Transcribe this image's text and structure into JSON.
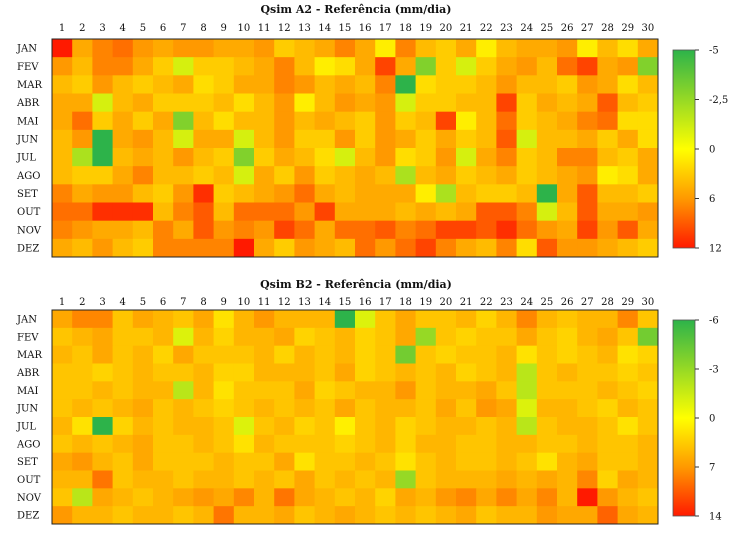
{
  "chart_data": [
    {
      "type": "heatmap",
      "title": "Qsim A2 - Referência (mm/dia)",
      "x_categories": [
        "1",
        "2",
        "3",
        "4",
        "5",
        "6",
        "7",
        "8",
        "9",
        "10",
        "11",
        "12",
        "13",
        "14",
        "15",
        "16",
        "17",
        "18",
        "19",
        "20",
        "21",
        "22",
        "23",
        "24",
        "25",
        "26",
        "27",
        "28",
        "29",
        "30"
      ],
      "y_categories": [
        "JAN",
        "FEV",
        "MAR",
        "ABR",
        "MAI",
        "JUN",
        "JUL",
        "AGO",
        "SET",
        "OUT",
        "NOV",
        "DEZ"
      ],
      "colorbar": {
        "ticks": [
          "-5",
          "-2,5",
          "0",
          "6",
          "12"
        ],
        "tick_values": [
          -5,
          -2.5,
          0,
          6,
          12
        ],
        "colors": [
          "#2db34a",
          "#ffff00",
          "#ff1a00"
        ]
      },
      "values": [
        [
          12,
          5,
          7,
          8,
          6,
          5,
          6,
          6,
          5,
          5,
          6,
          3,
          4,
          5,
          7,
          5,
          1,
          7,
          4,
          3,
          5,
          1,
          4,
          5,
          5,
          6,
          1,
          4,
          2,
          5
        ],
        [
          6,
          4,
          7,
          7,
          5,
          3,
          -1,
          3,
          3,
          4,
          5,
          7,
          4,
          1,
          2,
          5,
          10,
          5,
          -3,
          3,
          -1,
          3,
          5,
          6,
          4,
          8,
          10,
          5,
          6,
          -3
        ],
        [
          4,
          3,
          6,
          4,
          3,
          4,
          5,
          2,
          3,
          5,
          5,
          7,
          6,
          4,
          5,
          4,
          7,
          -5,
          2,
          3,
          3,
          4,
          6,
          4,
          4,
          3,
          6,
          5,
          2,
          4
        ],
        [
          5,
          5,
          -1,
          4,
          5,
          3,
          3,
          3,
          4,
          2,
          4,
          6,
          1,
          4,
          6,
          5,
          6,
          -1,
          3,
          3,
          4,
          4,
          10,
          3,
          5,
          4,
          5,
          9,
          4,
          3
        ],
        [
          5,
          8,
          3,
          5,
          3,
          5,
          -3,
          4,
          2,
          4,
          4,
          6,
          4,
          5,
          4,
          3,
          6,
          3,
          4,
          10,
          1,
          4,
          8,
          3,
          4,
          5,
          7,
          8,
          2,
          2
        ],
        [
          4,
          6,
          -5,
          5,
          6,
          4,
          -1,
          5,
          5,
          -1,
          4,
          6,
          3,
          3,
          6,
          3,
          6,
          5,
          3,
          5,
          3,
          4,
          9,
          -1,
          4,
          4,
          5,
          3,
          5,
          2
        ],
        [
          4,
          -2,
          -5,
          4,
          5,
          4,
          6,
          4,
          3,
          -3,
          3,
          5,
          4,
          2,
          -1,
          4,
          6,
          2,
          3,
          6,
          -1,
          5,
          7,
          3,
          4,
          7,
          7,
          4,
          3,
          5
        ],
        [
          4,
          3,
          3,
          5,
          7,
          4,
          4,
          3,
          4,
          -1,
          5,
          3,
          6,
          3,
          4,
          5,
          4,
          -2,
          4,
          5,
          3,
          4,
          5,
          3,
          4,
          5,
          6,
          1,
          2,
          5
        ],
        [
          7,
          5,
          6,
          6,
          4,
          3,
          6,
          11,
          3,
          4,
          5,
          6,
          8,
          5,
          4,
          5,
          5,
          5,
          1,
          -2,
          4,
          3,
          3,
          4,
          -5,
          5,
          9,
          4,
          4,
          3
        ],
        [
          8,
          8,
          11,
          11,
          11,
          4,
          7,
          9,
          4,
          8,
          8,
          8,
          6,
          10,
          5,
          5,
          5,
          4,
          5,
          4,
          5,
          9,
          9,
          7,
          -1,
          4,
          9,
          5,
          5,
          6
        ],
        [
          7,
          6,
          5,
          5,
          4,
          7,
          5,
          9,
          6,
          7,
          6,
          10,
          8,
          5,
          8,
          8,
          9,
          7,
          8,
          10,
          10,
          9,
          11,
          8,
          6,
          5,
          10,
          6,
          9,
          5
        ],
        [
          5,
          4,
          6,
          4,
          3,
          7,
          7,
          7,
          7,
          12,
          5,
          3,
          6,
          5,
          4,
          8,
          6,
          8,
          10,
          7,
          5,
          4,
          7,
          2,
          9,
          6,
          6,
          5,
          4,
          3
        ]
      ]
    },
    {
      "type": "heatmap",
      "title": "Qsim B2 - Referência (mm/dia)",
      "x_categories": [
        "1",
        "2",
        "3",
        "4",
        "5",
        "6",
        "7",
        "8",
        "9",
        "10",
        "11",
        "12",
        "13",
        "14",
        "15",
        "16",
        "17",
        "18",
        "19",
        "20",
        "21",
        "22",
        "23",
        "24",
        "25",
        "26",
        "27",
        "28",
        "29",
        "30"
      ],
      "y_categories": [
        "JAN",
        "FEV",
        "MAR",
        "ABR",
        "MAI",
        "JUN",
        "JUL",
        "AGO",
        "SET",
        "OUT",
        "NOV",
        "DEZ"
      ],
      "colorbar": {
        "ticks": [
          "-6",
          "-3",
          "0",
          "7",
          "14"
        ],
        "tick_values": [
          -6,
          -3,
          0,
          7,
          14
        ],
        "colors": [
          "#2db34a",
          "#ffff00",
          "#ff1a00"
        ]
      },
      "values": [
        [
          6,
          8,
          8,
          4,
          6,
          5,
          4,
          6,
          2,
          5,
          7,
          5,
          5,
          5,
          -6,
          -1,
          4,
          6,
          4,
          4,
          5,
          3,
          5,
          8,
          5,
          4,
          5,
          5,
          8,
          4
        ],
        [
          4,
          5,
          6,
          4,
          4,
          5,
          -1,
          5,
          3,
          5,
          5,
          6,
          3,
          4,
          5,
          3,
          4,
          6,
          -3,
          4,
          3,
          4,
          4,
          6,
          4,
          3,
          5,
          6,
          4,
          -4
        ],
        [
          5,
          4,
          6,
          4,
          5,
          3,
          6,
          4,
          4,
          4,
          5,
          3,
          5,
          4,
          5,
          3,
          4,
          -4,
          4,
          3,
          4,
          4,
          5,
          2,
          4,
          3,
          4,
          5,
          2,
          3
        ],
        [
          4,
          4,
          3,
          4,
          5,
          4,
          4,
          5,
          3,
          3,
          5,
          5,
          5,
          4,
          6,
          3,
          4,
          5,
          4,
          5,
          3,
          4,
          5,
          -2,
          4,
          5,
          4,
          4,
          3,
          4
        ],
        [
          4,
          4,
          5,
          4,
          5,
          5,
          -2,
          5,
          2,
          4,
          4,
          4,
          6,
          3,
          4,
          5,
          5,
          7,
          4,
          5,
          5,
          6,
          4,
          -2,
          4,
          4,
          4,
          5,
          4,
          3
        ],
        [
          4,
          5,
          4,
          5,
          6,
          4,
          5,
          4,
          3,
          4,
          5,
          4,
          5,
          4,
          6,
          4,
          5,
          5,
          4,
          6,
          4,
          7,
          6,
          -1,
          5,
          5,
          4,
          3,
          5,
          4
        ],
        [
          5,
          2,
          -6,
          3,
          5,
          4,
          5,
          5,
          4,
          -1,
          4,
          5,
          3,
          4,
          1,
          4,
          5,
          3,
          4,
          5,
          5,
          4,
          5,
          -2,
          4,
          5,
          5,
          4,
          2,
          4
        ],
        [
          4,
          5,
          4,
          5,
          6,
          4,
          4,
          5,
          4,
          2,
          5,
          4,
          4,
          4,
          3,
          4,
          5,
          3,
          5,
          5,
          4,
          4,
          5,
          5,
          4,
          4,
          5,
          4,
          4,
          5
        ],
        [
          6,
          7,
          5,
          4,
          6,
          4,
          4,
          4,
          5,
          4,
          4,
          6,
          2,
          4,
          4,
          5,
          4,
          2,
          4,
          5,
          4,
          4,
          5,
          4,
          2,
          5,
          6,
          4,
          4,
          5
        ],
        [
          5,
          5,
          9,
          4,
          5,
          5,
          4,
          5,
          5,
          4,
          5,
          4,
          6,
          4,
          5,
          4,
          5,
          -3,
          4,
          5,
          5,
          5,
          6,
          5,
          6,
          5,
          8,
          3,
          6,
          5
        ],
        [
          4,
          -2,
          6,
          5,
          4,
          5,
          6,
          7,
          6,
          8,
          5,
          9,
          6,
          5,
          4,
          5,
          3,
          6,
          5,
          7,
          8,
          6,
          8,
          6,
          8,
          5,
          14,
          7,
          5,
          4
        ],
        [
          7,
          5,
          5,
          4,
          5,
          5,
          4,
          5,
          9,
          5,
          5,
          6,
          4,
          5,
          6,
          5,
          4,
          5,
          4,
          5,
          6,
          4,
          5,
          5,
          7,
          6,
          6,
          10,
          6,
          5
        ]
      ]
    }
  ]
}
